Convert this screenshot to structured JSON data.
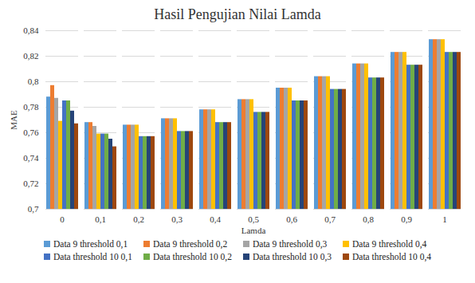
{
  "chart_data": {
    "type": "bar",
    "title": "Hasil Pengujian Nilai Lamda",
    "xlabel": "Lamda",
    "ylabel": "MAE",
    "categories": [
      "0",
      "0,1",
      "0,2",
      "0,3",
      "0,4",
      "0,5",
      "0,6",
      "0,7",
      "0,8",
      "0,9",
      "1"
    ],
    "series": [
      {
        "name": "Data 9 threshold 0,1",
        "color": "#5B9BD5",
        "values": [
          0.788,
          0.768,
          0.766,
          0.771,
          0.778,
          0.786,
          0.795,
          0.804,
          0.814,
          0.823,
          0.833
        ]
      },
      {
        "name": "Data 9 threshold 0,2",
        "color": "#ED7D31",
        "values": [
          0.797,
          0.768,
          0.766,
          0.771,
          0.778,
          0.786,
          0.795,
          0.804,
          0.814,
          0.823,
          0.833
        ]
      },
      {
        "name": "Data 9 threshold 0,3",
        "color": "#A5A5A5",
        "values": [
          0.787,
          0.765,
          0.766,
          0.771,
          0.778,
          0.786,
          0.795,
          0.804,
          0.814,
          0.823,
          0.833
        ]
      },
      {
        "name": "Data 9 threshold 0,4",
        "color": "#FFC000",
        "values": [
          0.769,
          0.759,
          0.766,
          0.771,
          0.778,
          0.786,
          0.795,
          0.804,
          0.814,
          0.823,
          0.833
        ]
      },
      {
        "name": "Data threshold 10 0,1",
        "color": "#4472C4",
        "values": [
          0.785,
          0.759,
          0.757,
          0.761,
          0.768,
          0.776,
          0.785,
          0.794,
          0.803,
          0.813,
          0.823
        ]
      },
      {
        "name": "Data threshold 10 0,2",
        "color": "#70AD47",
        "values": [
          0.785,
          0.759,
          0.757,
          0.761,
          0.768,
          0.776,
          0.785,
          0.794,
          0.803,
          0.813,
          0.823
        ]
      },
      {
        "name": "Data threshold 10 0,3",
        "color": "#264478",
        "values": [
          0.777,
          0.755,
          0.757,
          0.761,
          0.768,
          0.776,
          0.785,
          0.794,
          0.803,
          0.813,
          0.823
        ]
      },
      {
        "name": "Data threshold 10 0,4",
        "color": "#9E480E",
        "values": [
          0.767,
          0.749,
          0.757,
          0.761,
          0.768,
          0.776,
          0.785,
          0.794,
          0.803,
          0.813,
          0.823
        ]
      }
    ],
    "ylim": [
      0.7,
      0.84
    ],
    "yticks": [
      {
        "value": 0.7,
        "label": "0,7"
      },
      {
        "value": 0.72,
        "label": "0,72"
      },
      {
        "value": 0.74,
        "label": "0,74"
      },
      {
        "value": 0.76,
        "label": "0,76"
      },
      {
        "value": 0.78,
        "label": "0,78"
      },
      {
        "value": 0.8,
        "label": "0,8"
      },
      {
        "value": 0.82,
        "label": "0,82"
      },
      {
        "value": 0.84,
        "label": "0,84"
      }
    ],
    "grid": true,
    "legend": "bottom"
  }
}
